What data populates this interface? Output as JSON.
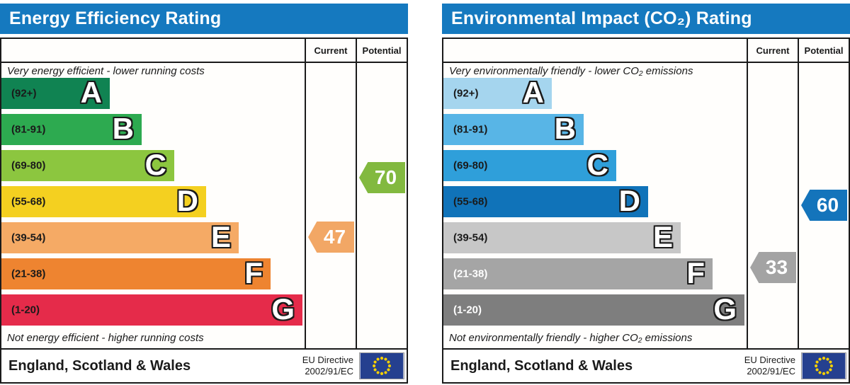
{
  "chart_data": [
    {
      "type": "bar",
      "title": "Energy Efficiency Rating",
      "categories": [
        "A",
        "B",
        "C",
        "D",
        "E",
        "F",
        "G"
      ],
      "band_ranges": [
        "92+",
        "81-91",
        "69-80",
        "55-68",
        "39-54",
        "21-38",
        "1-20"
      ],
      "series": [
        {
          "name": "Current",
          "value": 47,
          "band": "E"
        },
        {
          "name": "Potential",
          "value": 70,
          "band": "C"
        }
      ],
      "top_caption": "Very energy efficient - lower running costs",
      "bottom_caption": "Not energy efficient - higher running costs",
      "footer": "England, Scotland & Wales",
      "directive": "EU Directive 2002/91/EC"
    },
    {
      "type": "bar",
      "title": "Environmental Impact (CO₂) Rating",
      "categories": [
        "A",
        "B",
        "C",
        "D",
        "E",
        "F",
        "G"
      ],
      "band_ranges": [
        "92+",
        "81-91",
        "69-80",
        "55-68",
        "39-54",
        "21-38",
        "1-20"
      ],
      "series": [
        {
          "name": "Current",
          "value": 33,
          "band": "F"
        },
        {
          "name": "Potential",
          "value": 60,
          "band": "D"
        }
      ],
      "top_caption": "Very environmentally friendly - lower CO₂ emissions",
      "bottom_caption": "Not environmentally friendly - higher CO₂ emissions",
      "footer": "England, Scotland & Wales",
      "directive": "EU Directive 2002/91/EC"
    }
  ],
  "panels": [
    {
      "title": "Energy Efficiency Rating",
      "header": {
        "current": "Current",
        "potential": "Potential"
      },
      "top_caption": "Very energy efficient - lower running costs",
      "bottom_caption": "Not energy efficient - higher running costs",
      "bands": [
        {
          "letter": "A",
          "range_label": "(92+)",
          "min": 92,
          "max": 100,
          "color": "#108352",
          "label_color": "#1a1a1a"
        },
        {
          "letter": "B",
          "range_label": "(81-91)",
          "min": 81,
          "max": 91,
          "color": "#2daa50",
          "label_color": "#1a1a1a"
        },
        {
          "letter": "C",
          "range_label": "(69-80)",
          "min": 69,
          "max": 80,
          "color": "#8cc63f",
          "label_color": "#1a1a1a"
        },
        {
          "letter": "D",
          "range_label": "(55-68)",
          "min": 55,
          "max": 68,
          "color": "#f4d020",
          "label_color": "#1a1a1a"
        },
        {
          "letter": "E",
          "range_label": "(39-54)",
          "min": 39,
          "max": 54,
          "color": "#f5aa65",
          "label_color": "#1a1a1a"
        },
        {
          "letter": "F",
          "range_label": "(21-38)",
          "min": 21,
          "max": 38,
          "color": "#ee8430",
          "label_color": "#1a1a1a"
        },
        {
          "letter": "G",
          "range_label": "(1-20)",
          "min": 1,
          "max": 20,
          "color": "#e52b4a",
          "label_color": "#1a1a1a"
        }
      ],
      "current": {
        "value": 47,
        "color": "#f2a765"
      },
      "potential": {
        "value": 70,
        "color": "#82b93f"
      },
      "footer": {
        "region": "England, Scotland & Wales",
        "directive_line1": "EU Directive",
        "directive_line2": "2002/91/EC"
      }
    },
    {
      "title": "Environmental Impact (CO₂) Rating",
      "header": {
        "current": "Current",
        "potential": "Potential"
      },
      "top_caption": "Very environmentally friendly - lower CO₂ emissions",
      "bottom_caption": "Not environmentally friendly - higher CO₂ emissions",
      "bands": [
        {
          "letter": "A",
          "range_label": "(92+)",
          "min": 92,
          "max": 100,
          "color": "#a5d5ee",
          "label_color": "#1a1a1a"
        },
        {
          "letter": "B",
          "range_label": "(81-91)",
          "min": 81,
          "max": 91,
          "color": "#58b5e6",
          "label_color": "#1a1a1a"
        },
        {
          "letter": "C",
          "range_label": "(69-80)",
          "min": 69,
          "max": 80,
          "color": "#2f9fda",
          "label_color": "#1a1a1a"
        },
        {
          "letter": "D",
          "range_label": "(55-68)",
          "min": 55,
          "max": 68,
          "color": "#1073b9",
          "label_color": "#1a1a1a"
        },
        {
          "letter": "E",
          "range_label": "(39-54)",
          "min": 39,
          "max": 54,
          "color": "#c7c7c7",
          "label_color": "#1a1a1a"
        },
        {
          "letter": "F",
          "range_label": "(21-38)",
          "min": 21,
          "max": 38,
          "color": "#a5a5a5",
          "label_color": "#ffffff"
        },
        {
          "letter": "G",
          "range_label": "(1-20)",
          "min": 1,
          "max": 20,
          "color": "#7e7e7e",
          "label_color": "#ffffff"
        }
      ],
      "current": {
        "value": 33,
        "color": "#a3a3a3"
      },
      "potential": {
        "value": 60,
        "color": "#1474bb"
      },
      "footer": {
        "region": "England, Scotland & Wales",
        "directive_line1": "EU Directive",
        "directive_line2": "2002/91/EC"
      }
    }
  ]
}
